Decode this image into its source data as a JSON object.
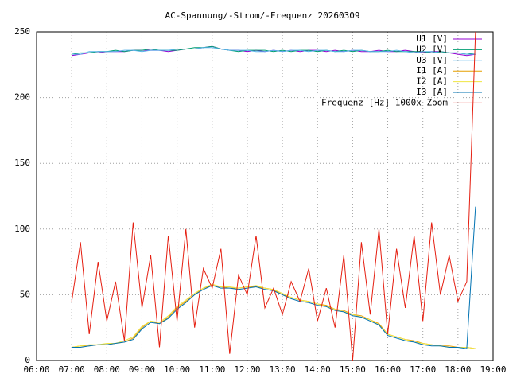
{
  "chart_data": {
    "type": "line",
    "title": "AC-Spannung/-Strom/-Frequenz 20260309",
    "x": [
      7.0,
      7.25,
      7.5,
      7.75,
      8.0,
      8.25,
      8.5,
      8.75,
      9.0,
      9.25,
      9.5,
      9.75,
      10.0,
      10.25,
      10.5,
      10.75,
      11.0,
      11.25,
      11.5,
      11.75,
      12.0,
      12.25,
      12.5,
      12.75,
      13.0,
      13.25,
      13.5,
      13.75,
      14.0,
      14.25,
      14.5,
      14.75,
      15.0,
      15.25,
      15.5,
      15.75,
      16.0,
      16.25,
      16.5,
      16.75,
      17.0,
      17.25,
      17.5,
      17.75,
      18.0,
      18.25,
      18.5
    ],
    "series": [
      {
        "name": "U1 [V]",
        "color": "#9400d3",
        "values": [
          232,
          233,
          234,
          234,
          235,
          235,
          235,
          236,
          236,
          236,
          236,
          235,
          236,
          237,
          237,
          238,
          239,
          237,
          236,
          236,
          235,
          236,
          235,
          236,
          235,
          236,
          235,
          236,
          236,
          235,
          236,
          235,
          236,
          235,
          235,
          236,
          235,
          235,
          236,
          235,
          234,
          235,
          235,
          234,
          233,
          232,
          233
        ]
      },
      {
        "name": "U2 [V]",
        "color": "#009e73",
        "values": [
          233,
          234,
          234,
          235,
          235,
          236,
          235,
          236,
          236,
          237,
          236,
          236,
          236,
          237,
          238,
          238,
          239,
          237,
          236,
          235,
          236,
          236,
          236,
          235,
          236,
          235,
          236,
          236,
          235,
          236,
          235,
          236,
          235,
          236,
          235,
          235,
          236,
          235,
          235,
          235,
          235,
          234,
          235,
          234,
          234,
          233,
          234
        ]
      },
      {
        "name": "U3 [V]",
        "color": "#56b4e9",
        "values": [
          233,
          233,
          235,
          235,
          235,
          235,
          236,
          236,
          235,
          236,
          236,
          236,
          237,
          237,
          237,
          238,
          238,
          237,
          236,
          236,
          236,
          235,
          235,
          236,
          235,
          236,
          236,
          235,
          236,
          236,
          235,
          235,
          236,
          236,
          235,
          235,
          235,
          236,
          235,
          234,
          235,
          235,
          234,
          234,
          234,
          233,
          233
        ]
      },
      {
        "name": "I1 [A]",
        "color": "#e69f00",
        "values": [
          10,
          11,
          11,
          12,
          12,
          13,
          14,
          17,
          25,
          30,
          28,
          33,
          40,
          45,
          50,
          55,
          57,
          56,
          55,
          55,
          56,
          56,
          55,
          54,
          50,
          48,
          46,
          45,
          43,
          42,
          39,
          38,
          35,
          34,
          31,
          28,
          20,
          18,
          16,
          15,
          13,
          12,
          11,
          11,
          10,
          10,
          9
        ]
      },
      {
        "name": "I2 [A]",
        "color": "#f0e442",
        "values": [
          10,
          11,
          12,
          12,
          13,
          13,
          15,
          18,
          26,
          30,
          29,
          34,
          41,
          46,
          51,
          55,
          58,
          56,
          56,
          55,
          56,
          57,
          55,
          54,
          51,
          48,
          46,
          45,
          43,
          41,
          39,
          37,
          35,
          33,
          31,
          27,
          20,
          18,
          16,
          14,
          13,
          12,
          11,
          10,
          10,
          10,
          9
        ]
      },
      {
        "name": "I3 [A]",
        "color": "#0072b2",
        "values": [
          10,
          10,
          11,
          12,
          12,
          13,
          14,
          16,
          24,
          29,
          28,
          32,
          39,
          44,
          50,
          54,
          57,
          55,
          55,
          54,
          55,
          56,
          54,
          53,
          50,
          47,
          45,
          44,
          42,
          41,
          38,
          37,
          34,
          33,
          30,
          27,
          19,
          17,
          15,
          14,
          12,
          11,
          11,
          10,
          10,
          9,
          117
        ]
      },
      {
        "name": "Frequenz [Hz] 1000x Zoom",
        "color": "#e51e10",
        "values": [
          45,
          90,
          20,
          75,
          30,
          60,
          15,
          105,
          40,
          80,
          10,
          95,
          30,
          100,
          25,
          70,
          55,
          85,
          5,
          65,
          50,
          95,
          40,
          55,
          35,
          60,
          45,
          70,
          30,
          55,
          25,
          80,
          0,
          90,
          35,
          100,
          20,
          85,
          40,
          95,
          30,
          105,
          50,
          80,
          45,
          60,
          250
        ]
      }
    ],
    "xlim": [
      6,
      19
    ],
    "xticks": [
      {
        "value": 6,
        "label": "06:00"
      },
      {
        "value": 7,
        "label": "07:00"
      },
      {
        "value": 8,
        "label": "08:00"
      },
      {
        "value": 9,
        "label": "09:00"
      },
      {
        "value": 10,
        "label": "10:00"
      },
      {
        "value": 11,
        "label": "11:00"
      },
      {
        "value": 12,
        "label": "12:00"
      },
      {
        "value": 13,
        "label": "13:00"
      },
      {
        "value": 14,
        "label": "14:00"
      },
      {
        "value": 15,
        "label": "15:00"
      },
      {
        "value": 16,
        "label": "16:00"
      },
      {
        "value": 17,
        "label": "17:00"
      },
      {
        "value": 18,
        "label": "18:00"
      },
      {
        "value": 19,
        "label": "19:00"
      }
    ],
    "ylim": [
      0,
      250
    ],
    "yticks": [
      0,
      50,
      100,
      150,
      200,
      250
    ],
    "grid": true
  }
}
